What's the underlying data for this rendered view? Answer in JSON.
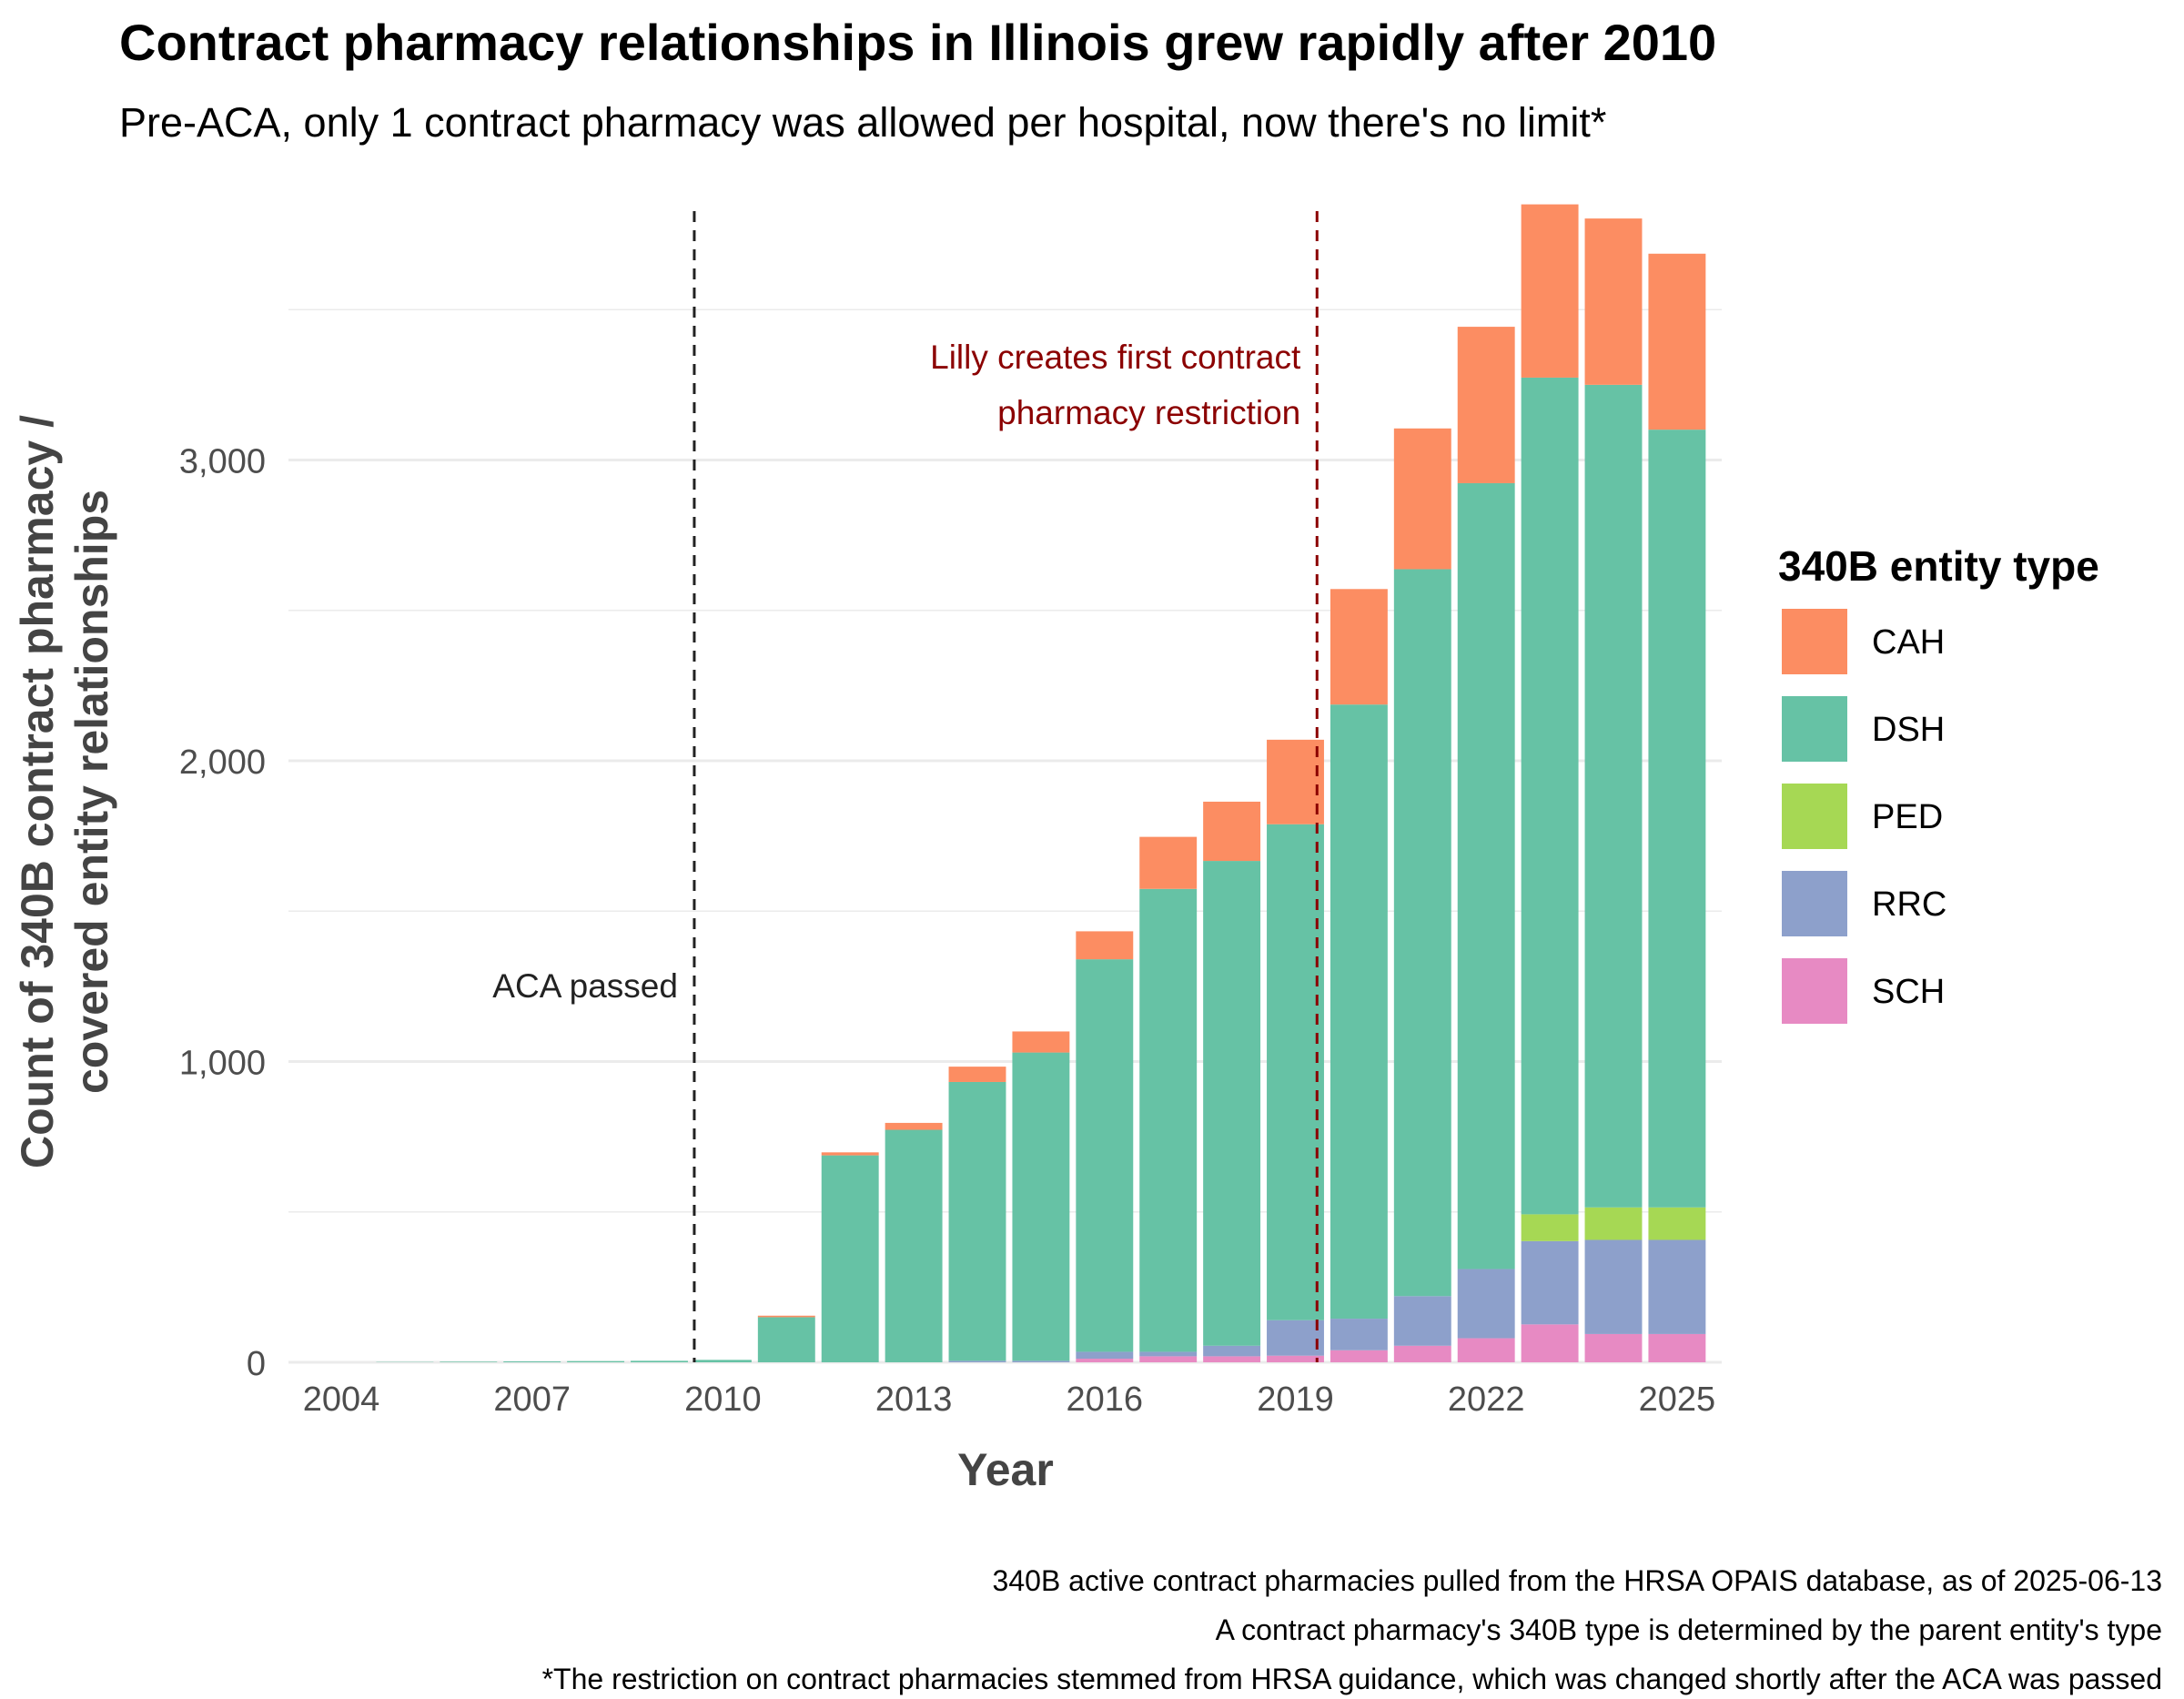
{
  "chart_data": {
    "type": "bar",
    "stacked": true,
    "title": "Contract pharmacy relationships in Illinois grew rapidly after 2010",
    "subtitle": "Pre-ACA, only 1 contract pharmacy was allowed per hospital, now there's no limit*",
    "xlabel": "Year",
    "ylabel_lines": [
      "Count of 340B contract pharmacy /",
      "covered entity relationships"
    ],
    "ylim": [
      0,
      3850
    ],
    "xlim": [
      2003.5,
      2025.5
    ],
    "yticks": [
      0,
      1000,
      2000,
      3000
    ],
    "ytick_labels": [
      "0",
      "1,000",
      "2,000",
      "3,000"
    ],
    "xticks": [
      2004,
      2007,
      2010,
      2013,
      2016,
      2019,
      2022,
      2025
    ],
    "xtick_labels": [
      "2004",
      "2007",
      "2010",
      "2013",
      "2016",
      "2019",
      "2022",
      "2025"
    ],
    "grid": true,
    "legend": {
      "title": "340B entity type",
      "placement": "right"
    },
    "years": [
      2005,
      2006,
      2007,
      2008,
      2009,
      2010,
      2011,
      2012,
      2013,
      2014,
      2015,
      2016,
      2017,
      2018,
      2019,
      2020,
      2021,
      2022,
      2023,
      2024,
      2025
    ],
    "series": [
      {
        "name": "SCH",
        "color": "#E78AC3",
        "values": [
          0,
          0,
          0,
          0,
          0,
          0,
          0,
          0,
          0,
          0,
          0,
          12,
          20,
          20,
          22,
          40,
          55,
          80,
          126,
          94,
          94
        ]
      },
      {
        "name": "RRC",
        "color": "#8DA0CB",
        "values": [
          0,
          0,
          0,
          0,
          0,
          0,
          0,
          0,
          0,
          5,
          5,
          23,
          15,
          35,
          118,
          105,
          165,
          230,
          277,
          313,
          313
        ]
      },
      {
        "name": "PED",
        "color": "#A6D854",
        "values": [
          0,
          0,
          0,
          0,
          0,
          0,
          0,
          0,
          0,
          0,
          0,
          0,
          0,
          0,
          0,
          0,
          0,
          0,
          89,
          108,
          108
        ]
      },
      {
        "name": "DSH",
        "color": "#66C2A5",
        "values": [
          1,
          2,
          3,
          4,
          5,
          8,
          150,
          688,
          773,
          927,
          1025,
          1305,
          1539,
          1612,
          1649,
          2042,
          2417,
          2613,
          2782,
          2735,
          2586
        ]
      },
      {
        "name": "CAH",
        "color": "#FC8D62",
        "values": [
          0,
          0,
          0,
          0,
          0,
          0,
          5,
          10,
          23,
          51,
          70,
          93,
          173,
          197,
          281,
          384,
          468,
          520,
          576,
          553,
          585
        ]
      }
    ],
    "legend_order": [
      "CAH",
      "DSH",
      "PED",
      "RRC",
      "SCH"
    ],
    "annotations": [
      {
        "name": "aca",
        "x": 2009.55,
        "lines": [
          "ACA passed"
        ],
        "color": "#222222"
      },
      {
        "name": "lilly",
        "x": 2019.34,
        "lines": [
          "Lilly creates first contract",
          "pharmacy restriction"
        ],
        "color": "#8B0000"
      }
    ],
    "caption": [
      "340B active contract pharmacies pulled from the HRSA OPAIS database, as of 2025-06-13",
      "A contract pharmacy's 340B type is determined by the parent entity's type",
      "*The restriction on contract pharmacies stemmed from HRSA guidance, which was changed shortly after the ACA was passed"
    ]
  }
}
